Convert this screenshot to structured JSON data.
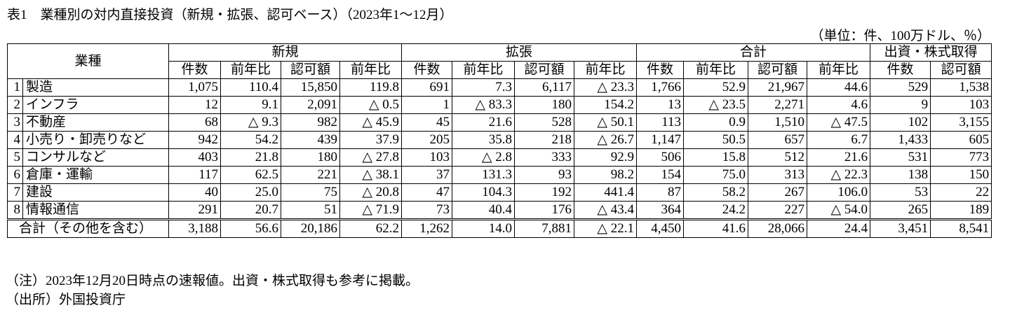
{
  "title": "表1　業種別の対内直接投資（新規・拡張、認可ベース）（2023年1～12月）",
  "unit": "（単位：件、100万ドル、％）",
  "table": {
    "corner": "業種",
    "groups": [
      "新規",
      "拡張",
      "合計",
      "出資・株式取得"
    ],
    "subheaders": [
      "件数",
      "前年比",
      "認可額",
      "前年比",
      "件数",
      "前年比",
      "認可額",
      "前年比",
      "件数",
      "前年比",
      "認可額",
      "前年比",
      "件数",
      "認可額"
    ],
    "rows": [
      {
        "no": "1",
        "name": "製造",
        "cells": [
          "1,075",
          "110.4",
          "15,850",
          "119.8",
          "691",
          "7.3",
          "6,117",
          "△ 23.3",
          "1,766",
          "52.9",
          "21,967",
          "44.6",
          "529",
          "1,538"
        ]
      },
      {
        "no": "2",
        "name": "インフラ",
        "cells": [
          "12",
          "9.1",
          "2,091",
          "△ 0.5",
          "1",
          "△ 83.3",
          "180",
          "154.2",
          "13",
          "△ 23.5",
          "2,271",
          "4.6",
          "9",
          "103"
        ]
      },
      {
        "no": "3",
        "name": "不動産",
        "cells": [
          "68",
          "△ 9.3",
          "982",
          "△ 45.9",
          "45",
          "21.6",
          "528",
          "△ 50.1",
          "113",
          "0.9",
          "1,510",
          "△ 47.5",
          "102",
          "3,155"
        ]
      },
      {
        "no": "4",
        "name": "小売り・卸売りなど",
        "cells": [
          "942",
          "54.2",
          "439",
          "37.9",
          "205",
          "35.8",
          "218",
          "△ 26.7",
          "1,147",
          "50.5",
          "657",
          "6.7",
          "1,433",
          "605"
        ]
      },
      {
        "no": "5",
        "name": "コンサルなど",
        "cells": [
          "403",
          "21.8",
          "180",
          "△ 27.8",
          "103",
          "△ 2.8",
          "333",
          "92.9",
          "506",
          "15.8",
          "512",
          "21.6",
          "531",
          "773"
        ]
      },
      {
        "no": "6",
        "name": "倉庫・運輸",
        "cells": [
          "117",
          "62.5",
          "221",
          "△ 38.1",
          "37",
          "131.3",
          "93",
          "98.2",
          "154",
          "75.0",
          "313",
          "△ 22.3",
          "138",
          "150"
        ]
      },
      {
        "no": "7",
        "name": "建設",
        "cells": [
          "40",
          "25.0",
          "75",
          "△ 20.8",
          "47",
          "104.3",
          "192",
          "441.4",
          "87",
          "58.2",
          "267",
          "106.0",
          "53",
          "22"
        ]
      },
      {
        "no": "8",
        "name": "情報通信",
        "cells": [
          "291",
          "20.7",
          "51",
          "△ 71.9",
          "73",
          "40.4",
          "176",
          "△ 43.4",
          "364",
          "24.2",
          "227",
          "△ 54.0",
          "265",
          "189"
        ]
      }
    ],
    "total": {
      "label": "合計（その他を含む）",
      "cells": [
        "3,188",
        "56.6",
        "20,186",
        "62.2",
        "1,262",
        "14.0",
        "7,881",
        "△ 22.1",
        "4,450",
        "41.6",
        "28,066",
        "24.4",
        "3,451",
        "8,541"
      ]
    }
  },
  "notes": [
    "（注）2023年12月20日時点の速報値。出資・株式取得も参考に掲載。",
    "（出所）外国投資庁"
  ]
}
